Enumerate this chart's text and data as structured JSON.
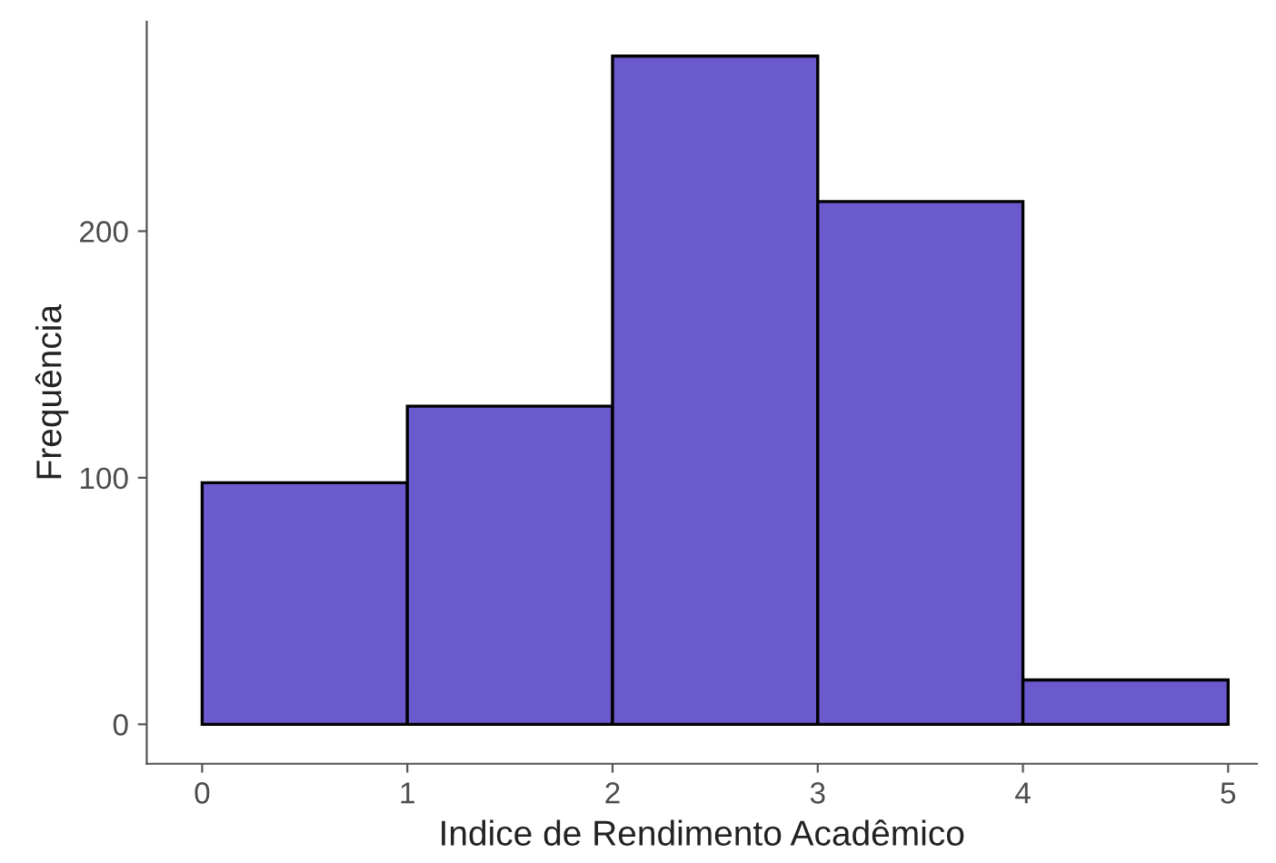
{
  "chart_data": {
    "type": "histogram",
    "xlabel": "Indice de Rendimento Acadêmico",
    "ylabel": "Frequência",
    "bins": [
      0,
      1,
      2,
      3,
      4,
      5
    ],
    "values": [
      98,
      129,
      271,
      212,
      18
    ],
    "color": "#6a5acd",
    "xlim": [
      -0.27,
      5.14
    ],
    "ylim": [
      -16,
      285
    ],
    "xticks": [
      0,
      1,
      2,
      3,
      4,
      5
    ],
    "yticks": [
      0,
      100,
      200
    ],
    "grid": false
  }
}
